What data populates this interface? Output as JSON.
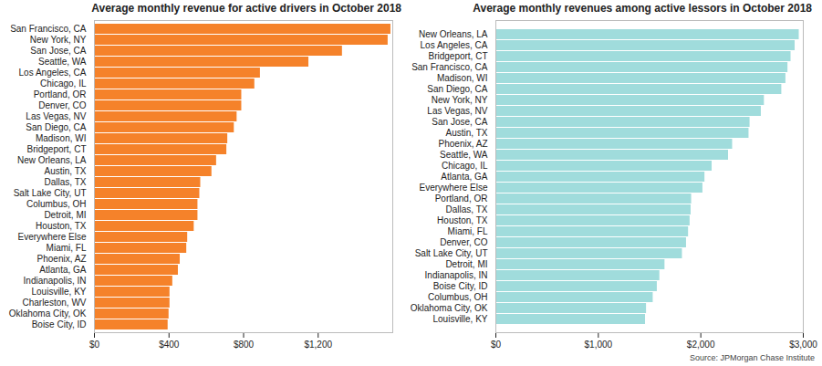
{
  "chart_data": [
    {
      "type": "bar",
      "orientation": "horizontal",
      "title": "Average monthly revenue for active drivers in October 2018",
      "categories": [
        "San Francisco, CA",
        "New York, NY",
        "San Jose, CA",
        "Seattle, WA",
        "Los Angeles, CA",
        "Chicago, IL",
        "Portland, OR",
        "Denver, CO",
        "Las Vegas, NV",
        "San Diego, CA",
        "Madison, WI",
        "Bridgeport, CT",
        "New Orleans, LA",
        "Austin, TX",
        "Dallas, TX",
        "Salt Lake City, UT",
        "Columbus, OH",
        "Detroit, MI",
        "Houston, TX",
        "Everywhere Else",
        "Miami, FL",
        "Phoenix, AZ",
        "Atlanta, GA",
        "Indianapolis, IN",
        "Louisville, KY",
        "Charleston, WV",
        "Oklahoma City, OK",
        "Boise City, ID"
      ],
      "values": [
        1590,
        1575,
        1330,
        1150,
        890,
        860,
        790,
        790,
        765,
        750,
        715,
        710,
        655,
        630,
        570,
        565,
        555,
        555,
        535,
        500,
        495,
        460,
        450,
        420,
        405,
        405,
        400,
        395
      ],
      "color": "#f5822a",
      "xlim": [
        0,
        1600
      ],
      "xticks": [
        {
          "value": 0,
          "label": "$0"
        },
        {
          "value": 400,
          "label": "$400"
        },
        {
          "value": 800,
          "label": "$800"
        },
        {
          "value": 1200,
          "label": "$1,200"
        }
      ]
    },
    {
      "type": "bar",
      "orientation": "horizontal",
      "title": "Average monthly revenues among active lessors in October 2018",
      "categories": [
        "New Orleans, LA",
        "Los Angeles, CA",
        "Bridgeport, CT",
        "San Francisco, CA",
        "Madison, WI",
        "San Diego, CA",
        "New York, NY",
        "Las Vegas, NV",
        "San Jose, CA",
        "Austin, TX",
        "Phoenix, AZ",
        "Seattle, WA",
        "Chicago, IL",
        "Atlanta, GA",
        "Everywhere Else",
        "Portland, OR",
        "Dallas, TX",
        "Houston, TX",
        "Miami, FL",
        "Denver, CO",
        "Salt Lake City, UT",
        "Detroit, MI",
        "Indianapolis, IN",
        "Boise City, ID",
        "Columbus, OH",
        "Oklahoma City, OK",
        "Louisville, KY"
      ],
      "values": [
        2960,
        2920,
        2880,
        2850,
        2830,
        2790,
        2620,
        2590,
        2480,
        2470,
        2310,
        2270,
        2110,
        2040,
        2020,
        1910,
        1905,
        1895,
        1880,
        1860,
        1820,
        1650,
        1600,
        1575,
        1535,
        1470,
        1460
      ],
      "color": "#a0dcdc",
      "xlim": [
        0,
        3000
      ],
      "xticks": [
        {
          "value": 0,
          "label": "$0"
        },
        {
          "value": 1000,
          "label": "$1,000"
        },
        {
          "value": 2000,
          "label": "$2,000"
        },
        {
          "value": 3000,
          "label": "$3,000"
        }
      ]
    }
  ],
  "source": "Source: JPMorgan Chase Institute"
}
